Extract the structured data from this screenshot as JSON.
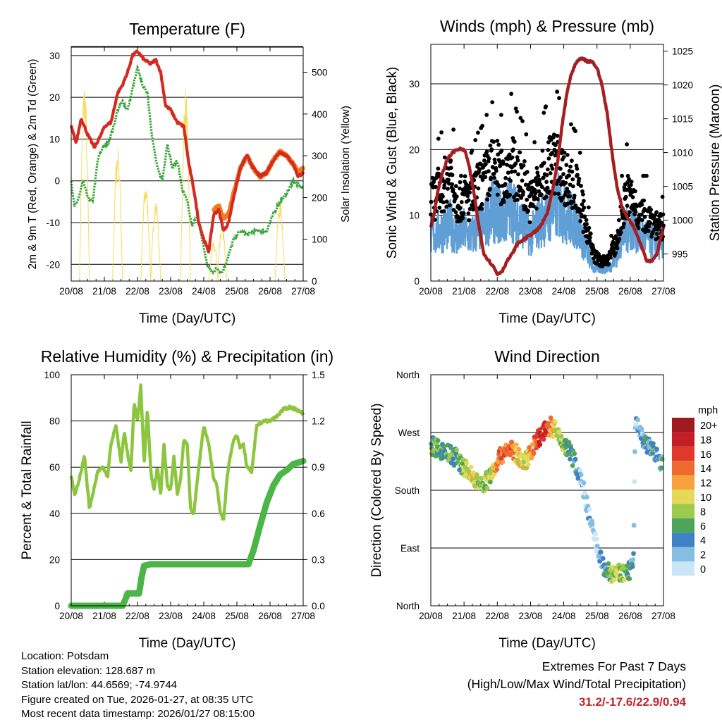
{
  "chart_data": [
    {
      "id": "temperature",
      "type": "line",
      "title": "Temperature (F)",
      "xlabel": "Time (Day/UTC)",
      "ylabel": "2m & 9m T (Red, Orange) & 2m Td (Green)",
      "y2label": "Solar Insolation (Yellow)",
      "xticks": [
        "20/08",
        "21/08",
        "22/08",
        "23/08",
        "24/08",
        "25/08",
        "26/08",
        "27/08"
      ],
      "xlim": [
        0,
        7
      ],
      "ylim": [
        -24,
        32
      ],
      "yticks": [
        30,
        20,
        10,
        0,
        -10,
        -20
      ],
      "y2lim": [
        0,
        560
      ],
      "y2ticks": [
        0,
        100,
        200,
        300,
        400,
        500
      ],
      "colors": {
        "t2m": "#d42a1f",
        "t9m": "#f07b22",
        "td": "#3aa63a",
        "solar": "#f7dc5a"
      },
      "series": [
        {
          "name": "2m T",
          "color": "#d42a1f",
          "x": [
            0,
            0.15,
            0.3,
            0.5,
            0.7,
            0.9,
            1.0,
            1.2,
            1.4,
            1.55,
            1.7,
            1.85,
            2.0,
            2.2,
            2.4,
            2.55,
            2.7,
            2.85,
            3.0,
            3.2,
            3.4,
            3.55,
            3.7,
            3.85,
            4.0,
            4.15,
            4.3,
            4.45,
            4.6,
            4.75,
            4.9,
            5.1,
            5.3,
            5.5,
            5.7,
            5.9,
            6.1,
            6.3,
            6.5,
            6.7,
            6.85,
            7.0
          ],
          "y": [
            13,
            9,
            15,
            11,
            8,
            11,
            13,
            14,
            21,
            23,
            26,
            30,
            31,
            29,
            28,
            29,
            26,
            18,
            17,
            14,
            13,
            4,
            -2,
            -10,
            -14,
            -17,
            -8,
            -7,
            -12,
            -10,
            -4,
            3,
            6,
            3,
            1,
            2,
            5,
            7,
            6,
            4,
            1,
            2
          ]
        },
        {
          "name": "9m T",
          "color": "#f07b22",
          "x": [
            4.3,
            4.45,
            4.6,
            4.75,
            4.9,
            5.1,
            5.3,
            5.5,
            5.7,
            5.9,
            6.1,
            6.3,
            6.5,
            6.7,
            6.85,
            7.0
          ],
          "y": [
            -7,
            -6,
            -9,
            -8,
            -3,
            3,
            6,
            3,
            1,
            2,
            5,
            7,
            6,
            4,
            2,
            3
          ]
        },
        {
          "name": "2m Td",
          "color": "#3aa63a",
          "x": [
            0,
            0.1,
            0.2,
            0.35,
            0.5,
            0.65,
            0.8,
            0.95,
            1.1,
            1.25,
            1.4,
            1.55,
            1.7,
            1.85,
            2.0,
            2.15,
            2.3,
            2.45,
            2.6,
            2.75,
            2.9,
            3.05,
            3.2,
            3.35,
            3.5,
            3.65,
            3.8,
            3.95,
            4.1,
            4.25,
            4.4,
            4.55,
            4.7,
            4.9,
            5.1,
            5.3,
            5.5,
            5.7,
            5.9,
            6.1,
            6.3,
            6.5,
            6.7,
            6.85,
            7.0
          ],
          "y": [
            0,
            -6,
            -5,
            0,
            -4,
            -5,
            5,
            8,
            9,
            12,
            17,
            19,
            17,
            22,
            27,
            23,
            21,
            10,
            3,
            0,
            9,
            3,
            5,
            -2,
            -5,
            -11,
            -8,
            -14,
            -20,
            -22,
            -21,
            -22,
            -19,
            -14,
            -12,
            -13,
            -12,
            -12,
            -12,
            -8,
            -5,
            -3,
            0,
            -1,
            -2
          ]
        },
        {
          "name": "Solar Insolation",
          "color": "#f7dc5a",
          "axis": "y2",
          "peaks_x": [
            0.4,
            1.4,
            2.25,
            2.55,
            3.45,
            4.3,
            4.55,
            6.3
          ],
          "peaks_y": [
            490,
            330,
            240,
            200,
            470,
            95,
            140,
            200
          ],
          "width_days": 0.3
        }
      ]
    },
    {
      "id": "winds",
      "type": "scatter",
      "title": "Winds (mph) & Pressure (mb)",
      "xlabel": "Time (Day/UTC)",
      "ylabel": "Sonic Wind & Gust (Blue, Black)",
      "y2label": "Station Pressure (Maroon)",
      "xticks": [
        "20/08",
        "21/08",
        "22/08",
        "23/08",
        "24/08",
        "25/08",
        "26/08",
        "27/08"
      ],
      "xlim": [
        0,
        7
      ],
      "ylim": [
        0,
        36
      ],
      "yticks": [
        0,
        10,
        20,
        30
      ],
      "y2lim": [
        991,
        1026
      ],
      "y2ticks": [
        995,
        1000,
        1005,
        1010,
        1015,
        1020,
        1025
      ],
      "colors": {
        "wind": "#5f9fd6",
        "gust": "#000000",
        "pressure": "#a51f21"
      },
      "wind_profile": {
        "x": [
          0,
          0.3,
          0.6,
          0.8,
          1.0,
          1.2,
          1.4,
          1.6,
          1.8,
          2.0,
          2.2,
          2.4,
          2.6,
          2.8,
          3.0,
          3.2,
          3.4,
          3.6,
          3.8,
          4.0,
          4.2,
          4.4,
          4.6,
          4.75,
          4.9,
          5.1,
          5.3,
          5.5,
          5.6,
          5.75,
          5.9,
          6.1,
          6.3,
          6.5,
          6.7,
          6.9,
          7.0
        ],
        "wind": [
          7,
          8,
          9,
          7,
          8,
          7,
          8,
          9,
          11,
          11,
          10,
          12,
          10,
          9,
          7,
          9,
          10,
          11,
          12,
          11,
          10,
          9,
          6,
          4,
          2,
          2,
          2,
          3,
          4,
          7,
          8,
          9,
          7,
          7,
          6,
          6,
          6
        ],
        "gust": [
          12,
          14,
          16,
          12,
          13,
          12,
          14,
          15,
          17,
          17,
          15,
          18,
          16,
          15,
          12,
          14,
          16,
          18,
          18,
          16,
          15,
          14,
          10,
          7,
          4,
          3,
          3,
          5,
          6,
          10,
          13,
          12,
          10,
          10,
          9,
          8,
          8
        ]
      },
      "gust_max": 22.9,
      "series": [
        {
          "name": "Station Pressure",
          "color": "#a51f21",
          "axis": "y2",
          "x": [
            0,
            0.1,
            0.2,
            0.35,
            0.5,
            0.65,
            0.8,
            0.95,
            1.05,
            1.15,
            1.3,
            1.45,
            1.6,
            1.75,
            1.9,
            2.0,
            2.15,
            2.3,
            2.45,
            2.6,
            2.75,
            2.9,
            3.05,
            3.2,
            3.35,
            3.5,
            3.65,
            3.8,
            3.95,
            4.1,
            4.25,
            4.4,
            4.55,
            4.7,
            4.85,
            5.0,
            5.15,
            5.3,
            5.45,
            5.6,
            5.75,
            5.9,
            6.05,
            6.2,
            6.35,
            6.5,
            6.65,
            6.8,
            6.95,
            7.0
          ],
          "y": [
            999,
            1001,
            1004,
            1007,
            1009,
            1010,
            1010.5,
            1010.5,
            1010,
            1008,
            1004,
            999,
            995,
            994,
            993,
            992,
            992.5,
            994,
            995,
            996.5,
            997,
            997.5,
            998,
            998.5,
            999.5,
            1001,
            1004,
            1008,
            1014,
            1019,
            1022,
            1023.5,
            1024,
            1023.5,
            1023.5,
            1022.5,
            1020,
            1016,
            1010,
            1005,
            1002,
            1000.5,
            999.5,
            998,
            996,
            994,
            994,
            995,
            998,
            999
          ]
        }
      ]
    },
    {
      "id": "humidity",
      "type": "line",
      "title": "Relative Humidity (%) & Precipitation (in)",
      "xlabel": "Time (Day/UTC)",
      "ylabel": "Percent & Total Rainfall",
      "xticks": [
        "20/08",
        "21/08",
        "22/08",
        "23/08",
        "24/08",
        "25/08",
        "26/08",
        "27/08"
      ],
      "xlim": [
        0,
        7
      ],
      "ylim": [
        0,
        100
      ],
      "yticks": [
        0,
        20,
        40,
        60,
        80,
        100
      ],
      "y2lim": [
        0,
        1.5
      ],
      "y2ticks": [
        "0.0",
        "0.3",
        "0.6",
        "0.9",
        "1.2",
        "1.5"
      ],
      "colors": {
        "rh": "#8cc63f",
        "precip": "#4bb648"
      },
      "series": [
        {
          "name": "Relative Humidity",
          "color": "#8cc63f",
          "x": [
            0,
            0.1,
            0.25,
            0.4,
            0.55,
            0.65,
            0.8,
            0.95,
            1.1,
            1.2,
            1.35,
            1.5,
            1.6,
            1.7,
            1.8,
            1.9,
            2.0,
            2.1,
            2.2,
            2.3,
            2.4,
            2.5,
            2.6,
            2.7,
            2.8,
            2.9,
            3.0,
            3.1,
            3.2,
            3.3,
            3.4,
            3.5,
            3.6,
            3.7,
            3.85,
            4.0,
            4.15,
            4.3,
            4.4,
            4.5,
            4.6,
            4.7,
            4.8,
            4.9,
            5.0,
            5.1,
            5.2,
            5.3,
            5.45,
            5.6,
            5.8,
            6.0,
            6.2,
            6.4,
            6.6,
            6.8,
            7.0
          ],
          "y": [
            56,
            48,
            55,
            65,
            42,
            48,
            58,
            60,
            56,
            70,
            78,
            62,
            75,
            66,
            58,
            88,
            80,
            95,
            62,
            85,
            58,
            50,
            60,
            48,
            70,
            52,
            50,
            65,
            48,
            55,
            72,
            70,
            42,
            40,
            60,
            78,
            70,
            55,
            52,
            40,
            37,
            55,
            65,
            72,
            74,
            68,
            70,
            60,
            58,
            78,
            80,
            80,
            82,
            85,
            86,
            85,
            83
          ]
        },
        {
          "name": "Total Precipitation",
          "color": "#4bb648",
          "axis": "y2",
          "x": [
            0,
            1.55,
            1.65,
            1.7,
            2.05,
            2.12,
            2.2,
            2.4,
            3.0,
            4.0,
            5.0,
            5.35,
            5.5,
            5.7,
            5.9,
            6.1,
            6.3,
            6.5,
            6.7,
            7.0
          ],
          "y": [
            0,
            0,
            0.05,
            0.08,
            0.08,
            0.18,
            0.26,
            0.27,
            0.27,
            0.27,
            0.27,
            0.27,
            0.36,
            0.52,
            0.67,
            0.78,
            0.85,
            0.88,
            0.92,
            0.94
          ]
        }
      ]
    },
    {
      "id": "direction",
      "type": "scatter",
      "title": "Wind Direction",
      "xlabel": "Time (Day/UTC)",
      "ylabel": "Direction (Colored By Speed)",
      "xticks": [
        "20/08",
        "21/08",
        "22/08",
        "23/08",
        "24/08",
        "25/08",
        "26/08",
        "27/08"
      ],
      "xlim": [
        0,
        7
      ],
      "ylim": [
        0,
        360
      ],
      "ytick_labels": [
        "North",
        "East",
        "South",
        "West",
        "North"
      ],
      "direction_profile": {
        "x": [
          0,
          0.2,
          0.4,
          0.6,
          0.8,
          1.0,
          1.2,
          1.4,
          1.5,
          1.6,
          1.8,
          2.0,
          2.2,
          2.4,
          2.6,
          2.8,
          3.0,
          3.2,
          3.4,
          3.6,
          3.8,
          4.0,
          4.2,
          4.4,
          4.6,
          4.8,
          5.0,
          5.2,
          5.4,
          5.6,
          5.8,
          6.0,
          6.1,
          6.15,
          6.3,
          6.5,
          6.7,
          6.9,
          7.0
        ],
        "dir": [
          250,
          245,
          240,
          235,
          230,
          215,
          205,
          195,
          185,
          190,
          205,
          225,
          240,
          245,
          235,
          220,
          240,
          260,
          270,
          280,
          270,
          250,
          240,
          215,
          180,
          130,
          90,
          60,
          50,
          50,
          50,
          55,
          70,
          290,
          270,
          250,
          240,
          225,
          215
        ],
        "speed": [
          8,
          7,
          6,
          7,
          8,
          9,
          11,
          10,
          7,
          9,
          10,
          14,
          16,
          15,
          12,
          10,
          13,
          17,
          19,
          14,
          10,
          8,
          6,
          4,
          2,
          2,
          1,
          4,
          8,
          10,
          8,
          5,
          4,
          3,
          4,
          5,
          6,
          5,
          4
        ]
      },
      "legend": {
        "title": "mph",
        "labels": [
          "20+",
          "18",
          "16",
          "14",
          "12",
          "10",
          "8",
          "6",
          "4",
          "2",
          "0"
        ],
        "colors": [
          "#9e1a1f",
          "#c41f26",
          "#e0382b",
          "#ef6a30",
          "#f7a23c",
          "#e6d95a",
          "#9acb4d",
          "#4ea559",
          "#3f81c4",
          "#86bde3",
          "#c8e6f7"
        ]
      }
    }
  ],
  "station": {
    "location": "Location: Potsdam",
    "elevation": "Station elevation: 128.687 m",
    "latlon": "Station lat/lon: 44.6569; -74.9744",
    "created": "Figure created on Tue, 2026-01-27, at 08:35 UTC",
    "timestamp": "Most recent data timestamp: 2026/01/27 08:15:00"
  },
  "extremes": {
    "title": "Extremes For Past 7 Days",
    "subtitle": "(High/Low/Max Wind/Total Precipitation)",
    "values": "31.2/-17.6/22.9/0.94"
  }
}
